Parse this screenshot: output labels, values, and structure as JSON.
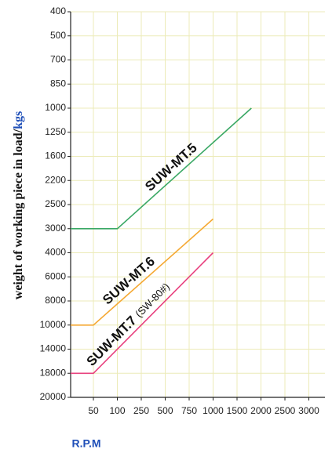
{
  "chart_data": {
    "type": "line",
    "ylabel": "weight of working piece in load/",
    "ylabel_unit": "kgs",
    "xlabel": "R.P.M",
    "annotation": "(SW-80#)",
    "xlim": [
      0,
      3000
    ],
    "xticks": [
      50,
      100,
      250,
      500,
      750,
      1000,
      1500,
      2000,
      2500,
      3000
    ],
    "ylim": [
      400,
      20000
    ],
    "yticks": [
      400,
      500,
      700,
      850,
      1000,
      1250,
      1600,
      2200,
      2500,
      3000,
      4000,
      6000,
      8000,
      10000,
      14000,
      18000,
      20000
    ],
    "grid": true,
    "series": [
      {
        "name": "SUW-MT.5",
        "color": "#3aa865",
        "x": [
          0,
          100,
          1800
        ],
        "values": [
          3000,
          3000,
          1000
        ]
      },
      {
        "name": "SUW-MT.6",
        "color": "#f5a832",
        "x": [
          0,
          50,
          1000
        ],
        "values": [
          10000,
          10000,
          2800
        ]
      },
      {
        "name": "SUW-MT.7",
        "color": "#e8407e",
        "x": [
          0,
          50,
          1000
        ],
        "values": [
          18000,
          18000,
          4000
        ]
      }
    ]
  }
}
